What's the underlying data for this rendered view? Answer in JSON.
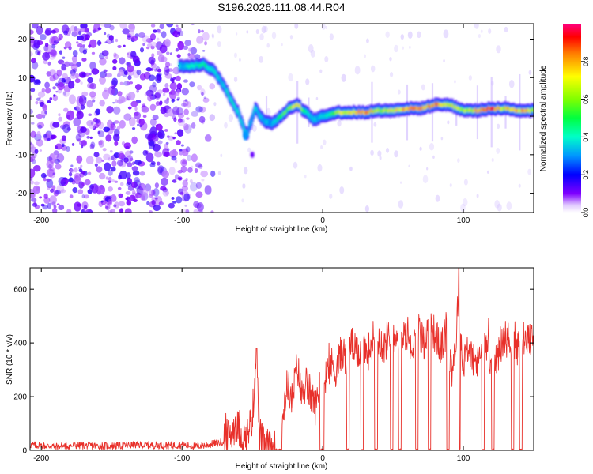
{
  "title": "S196.2026.111.08.44.R04",
  "colors": {
    "snr_line": "#e8302a",
    "frame": "#000000"
  },
  "chart_data": [
    {
      "type": "heatmap",
      "title": "S196.2026.111.08.44.R04",
      "xlabel": "Height of straight line (km)",
      "ylabel": "Frequency (Hz)",
      "xlim": [
        -208,
        150
      ],
      "ylim": [
        -25,
        24
      ],
      "xticks": [
        -200,
        -100,
        0,
        100
      ],
      "yticks": [
        20,
        10,
        0,
        -10,
        -20
      ],
      "colorbar": {
        "label": "Normalized spectral amplitude",
        "range": [
          0,
          1
        ],
        "ticks": [
          0.0,
          0.2,
          0.4,
          0.6,
          0.8
        ],
        "tick_labels": [
          "0.0",
          "0.2",
          "0.4",
          "0.6",
          "0.8"
        ],
        "colormap": [
          "#ffffff",
          "#8000ff",
          "#0000ff",
          "#00c8ff",
          "#00ff80",
          "#80ff00",
          "#ffff00",
          "#ff8000",
          "#ff0000",
          "#ff0080"
        ]
      },
      "ridge": {
        "x": [
          -102,
          -92,
          -85,
          -78,
          -72,
          -66,
          -60,
          -54,
          -48,
          -42,
          -36,
          -30,
          -24,
          -18,
          -12,
          -6,
          0,
          10,
          20,
          30,
          40,
          50,
          60,
          70,
          80,
          90,
          100,
          110,
          120,
          130,
          140,
          150
        ],
        "freq": [
          13,
          13,
          13.5,
          12,
          9,
          5,
          1,
          -5,
          2,
          -1,
          -2,
          0,
          2,
          3,
          1,
          -1,
          0,
          1,
          1,
          1,
          1.5,
          1.5,
          2,
          2,
          3,
          3,
          1.5,
          1.5,
          2,
          2,
          1.5,
          1.5
        ],
        "amp": [
          0.35,
          0.4,
          0.45,
          0.4,
          0.35,
          0.45,
          0.4,
          0.35,
          0.35,
          0.35,
          0.3,
          0.5,
          0.55,
          0.75,
          0.4,
          0.35,
          0.35,
          0.6,
          0.75,
          0.85,
          0.6,
          0.7,
          0.8,
          0.75,
          0.8,
          0.7,
          0.6,
          0.75,
          0.85,
          0.7,
          0.8,
          0.65
        ]
      },
      "noise_region": {
        "x_range": [
          -208,
          -88
        ],
        "level": "low (0.05-0.15)"
      }
    },
    {
      "type": "line",
      "xlabel": "Height of straight line (km)",
      "ylabel": "SNR (10 * v/v)",
      "xlim": [
        -208,
        150
      ],
      "ylim": [
        0,
        680
      ],
      "xticks": [
        -200,
        -100,
        0,
        100
      ],
      "yticks": [
        0,
        200,
        400,
        600
      ],
      "series": [
        {
          "name": "SNR",
          "x": [
            -208,
            -190,
            -170,
            -150,
            -130,
            -110,
            -100,
            -90,
            -80,
            -72,
            -65,
            -62,
            -58,
            -55,
            -50,
            -47,
            -45,
            -42,
            -38,
            -33,
            -30,
            -28,
            -25,
            -22,
            -18,
            -15,
            -12,
            -8,
            -5,
            -2,
            0,
            3,
            6,
            10,
            14,
            17,
            20,
            24,
            28,
            32,
            36,
            40,
            44,
            48,
            52,
            56,
            60,
            64,
            68,
            72,
            76,
            80,
            84,
            88,
            92,
            95,
            97,
            99,
            102,
            106,
            110,
            114,
            118,
            122,
            126,
            130,
            134,
            138,
            142,
            146,
            150
          ],
          "y": [
            20,
            15,
            18,
            16,
            20,
            18,
            20,
            15,
            22,
            30,
            60,
            100,
            60,
            40,
            120,
            380,
            60,
            20,
            10,
            5,
            0,
            150,
            250,
            180,
            320,
            200,
            250,
            200,
            160,
            260,
            200,
            280,
            320,
            300,
            380,
            320,
            410,
            350,
            400,
            360,
            420,
            420,
            380,
            460,
            430,
            400,
            440,
            380,
            450,
            400,
            470,
            430,
            380,
            440,
            300,
            420,
            680,
            300,
            380,
            350,
            320,
            400,
            370,
            300,
            380,
            420,
            400,
            360,
            420,
            400,
            410
          ]
        }
      ]
    }
  ]
}
